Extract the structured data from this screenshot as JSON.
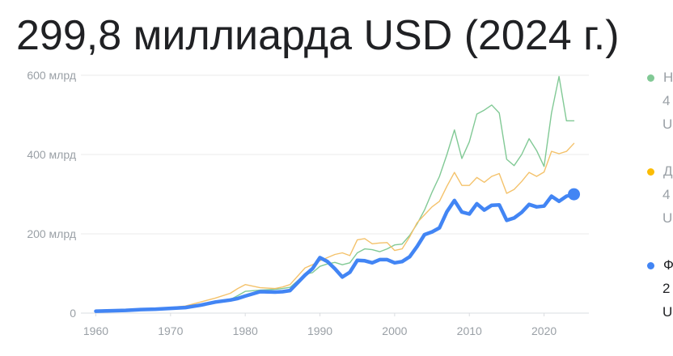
{
  "headline": "299,8 миллиарда USD (2024 г.)",
  "legend": [
    {
      "lines": [
        "Н",
        "4",
        "U"
      ],
      "color": "#81c995",
      "faded": true
    },
    {
      "lines": [
        "Д",
        "4",
        "U"
      ],
      "color": "#fbbc04",
      "faded": true
    },
    {
      "lines": [
        "Ф",
        "2",
        "U"
      ],
      "color": "#4285f4",
      "faded": false
    }
  ],
  "chart_data": {
    "type": "line",
    "title": "",
    "xlabel": "",
    "ylabel": "",
    "xlim": [
      1958,
      2026
    ],
    "ylim": [
      0,
      600
    ],
    "x_ticks": [
      "1960",
      "1970",
      "1980",
      "1990",
      "2000",
      "2010",
      "2020"
    ],
    "y_ticks": [
      "0",
      "200 млрд",
      "400 млрд",
      "600 млрд"
    ],
    "grid": true,
    "series": [
      {
        "color": "#81c995",
        "x": [
          1960,
          1962,
          1964,
          1966,
          1968,
          1970,
          1972,
          1974,
          1976,
          1978,
          1979,
          1980,
          1982,
          1984,
          1985,
          1986,
          1988,
          1989,
          1990,
          1991,
          1992,
          1993,
          1994,
          1995,
          1996,
          1997,
          1998,
          1999,
          2000,
          2001,
          2002,
          2003,
          2004,
          2005,
          2006,
          2007,
          2008,
          2009,
          2010,
          2011,
          2012,
          2013,
          2014,
          2015,
          2016,
          2017,
          2018,
          2019,
          2020,
          2021,
          2022,
          2023,
          2024
        ],
        "values": [
          6,
          7,
          8,
          9,
          10,
          11,
          14,
          20,
          26,
          34,
          44,
          55,
          58,
          60,
          62,
          65,
          98,
          102,
          118,
          124,
          128,
          122,
          127,
          152,
          162,
          160,
          155,
          162,
          172,
          174,
          196,
          225,
          260,
          305,
          345,
          400,
          462,
          390,
          432,
          502,
          512,
          525,
          505,
          388,
          372,
          400,
          440,
          410,
          370,
          505,
          597,
          485,
          485
        ]
      },
      {
        "color": "#f4c26b",
        "x": [
          1960,
          1962,
          1964,
          1966,
          1968,
          1970,
          1972,
          1974,
          1976,
          1978,
          1979,
          1980,
          1982,
          1984,
          1985,
          1986,
          1988,
          1989,
          1990,
          1991,
          1992,
          1993,
          1994,
          1995,
          1996,
          1997,
          1998,
          1999,
          2000,
          2001,
          2002,
          2003,
          2004,
          2005,
          2006,
          2007,
          2008,
          2009,
          2010,
          2011,
          2012,
          2013,
          2014,
          2015,
          2016,
          2017,
          2018,
          2019,
          2020,
          2021,
          2022,
          2023,
          2024
        ],
        "values": [
          6,
          7,
          8,
          10,
          12,
          14,
          18,
          28,
          38,
          50,
          62,
          72,
          64,
          62,
          66,
          72,
          114,
          122,
          132,
          140,
          148,
          152,
          145,
          185,
          188,
          175,
          177,
          178,
          158,
          162,
          192,
          228,
          248,
          268,
          282,
          320,
          355,
          322,
          322,
          342,
          330,
          345,
          352,
          302,
          312,
          332,
          355,
          345,
          356,
          408,
          402,
          408,
          428
        ]
      },
      {
        "color": "#4285f4",
        "x": [
          1960,
          1962,
          1964,
          1966,
          1968,
          1970,
          1972,
          1974,
          1976,
          1978,
          1979,
          1980,
          1982,
          1984,
          1985,
          1986,
          1988,
          1989,
          1990,
          1991,
          1992,
          1993,
          1994,
          1995,
          1996,
          1997,
          1998,
          1999,
          2000,
          2001,
          2002,
          2003,
          2004,
          2005,
          2006,
          2007,
          2008,
          2009,
          2010,
          2011,
          2012,
          2013,
          2014,
          2015,
          2016,
          2017,
          2018,
          2019,
          2020,
          2021,
          2022,
          2023,
          2024
        ],
        "values": [
          5,
          6,
          7,
          9,
          10,
          12,
          14,
          20,
          28,
          33,
          37,
          43,
          54,
          53,
          54,
          57,
          96,
          112,
          140,
          130,
          112,
          91,
          103,
          133,
          132,
          127,
          135,
          135,
          127,
          130,
          142,
          168,
          198,
          205,
          215,
          256,
          284,
          255,
          250,
          276,
          260,
          272,
          273,
          234,
          240,
          254,
          274,
          268,
          270,
          295,
          282,
          295,
          299.8
        ]
      }
    ]
  }
}
